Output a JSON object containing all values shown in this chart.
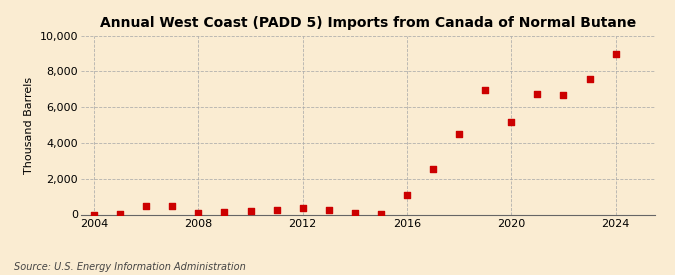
{
  "title": "Annual West Coast (PADD 5) Imports from Canada of Normal Butane",
  "ylabel": "Thousand Barrels",
  "source": "Source: U.S. Energy Information Administration",
  "background_color": "#faecd2",
  "plot_background_color": "#faecd2",
  "marker_color": "#cc0000",
  "grid_color": "#aaaaaa",
  "years": [
    2004,
    2005,
    2006,
    2007,
    2008,
    2009,
    2010,
    2011,
    2012,
    2013,
    2014,
    2015,
    2016,
    2017,
    2018,
    2019,
    2020,
    2021,
    2022,
    2023,
    2024
  ],
  "values": [
    0,
    50,
    450,
    450,
    100,
    150,
    200,
    250,
    350,
    250,
    100,
    50,
    1100,
    2550,
    4500,
    6950,
    5150,
    6750,
    6700,
    7600,
    9000
  ],
  "ylim": [
    0,
    10000
  ],
  "yticks": [
    0,
    2000,
    4000,
    6000,
    8000,
    10000
  ],
  "ytick_labels": [
    "0",
    "2,000",
    "4,000",
    "6,000",
    "8,000",
    "10,000"
  ],
  "xlim": [
    2003.5,
    2025.5
  ],
  "xticks": [
    2004,
    2008,
    2012,
    2016,
    2020,
    2024
  ],
  "title_fontsize": 10,
  "axis_fontsize": 8,
  "tick_fontsize": 8,
  "source_fontsize": 7
}
